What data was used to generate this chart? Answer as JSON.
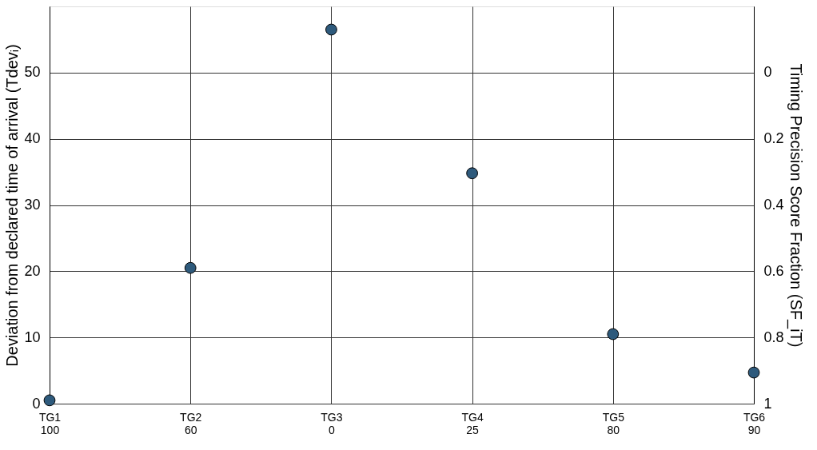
{
  "chart_data": {
    "type": "scatter",
    "categories": [
      "TG1\n100",
      "TG2\n60",
      "TG3\n0",
      "TG4\n25",
      "TG5\n80",
      "TG6\n90"
    ],
    "series": [
      {
        "color": "#2e5a7c",
        "values": [
          0.5,
          20.5,
          56.5,
          34.8,
          10.5,
          4.7
        ]
      }
    ],
    "ylabel": "Deviation  from declared time of arrival (Tdevᵢ)",
    "y2label": "Timing Precision Score Fraction (SF_iT)",
    "ylim": [
      0,
      60
    ],
    "yticks": [
      0,
      10,
      20,
      30,
      40,
      50
    ],
    "y2lim": [
      1,
      -0.2
    ],
    "y2ticks": [
      0,
      0.2,
      0.4,
      0.6,
      0.8,
      1
    ],
    "grid": true,
    "marker": "circle"
  }
}
